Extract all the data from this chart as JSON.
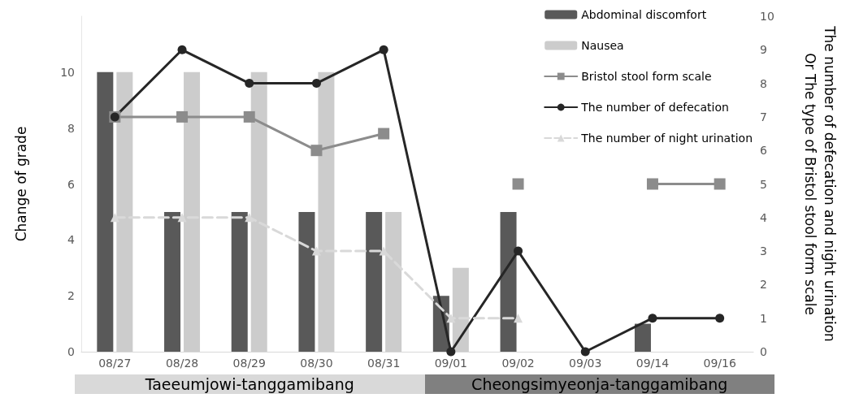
{
  "chart_data": {
    "type": "bar",
    "categories": [
      "08/27",
      "08/28",
      "08/29",
      "08/30",
      "08/31",
      "09/01",
      "09/02",
      "09/03",
      "09/14",
      "09/16"
    ],
    "series": [
      {
        "name": "Abdominal discomfort",
        "color": "#595959",
        "values": [
          10,
          5,
          5,
          5,
          5,
          2,
          5,
          null,
          1,
          null
        ]
      },
      {
        "name": "Nausea",
        "color": "#cccccc",
        "values": [
          10,
          10,
          10,
          10,
          5,
          3,
          null,
          null,
          null,
          null
        ]
      },
      {
        "name": "Bristol stool form scale",
        "type": "line",
        "axis": "y2",
        "color": "#8c8c8c",
        "marker": "square",
        "line_style": "solid",
        "values": [
          7,
          7,
          7,
          6,
          6.5,
          null,
          5,
          null,
          5,
          5
        ]
      },
      {
        "name": "The number of defecation",
        "type": "line",
        "axis": "y2",
        "color": "#262626",
        "marker": "circle",
        "line_style": "solid",
        "values": [
          7,
          9,
          8,
          8,
          9,
          0,
          3,
          0,
          1,
          1
        ]
      },
      {
        "name": "The number of night urination",
        "type": "line",
        "axis": "y2",
        "color": "#d9d9d9",
        "marker": "triangle",
        "line_style": "dashed",
        "values": [
          4,
          4,
          4,
          3,
          3,
          1,
          1,
          null,
          null,
          null
        ]
      }
    ],
    "ylabel": "Change of grade",
    "y2label": "The number of defecation and night urination\nOr The type of Bristol stool form scale",
    "ylim": [
      0,
      12
    ],
    "yticks": [
      0,
      2,
      4,
      6,
      8,
      10
    ],
    "y2lim": [
      0,
      10
    ],
    "y2ticks": [
      0,
      1,
      2,
      3,
      4,
      5,
      6,
      7,
      8,
      9,
      10
    ],
    "annotations": [
      "Taeeumjowi-tanggamibang",
      "Cheongsimyeonja-tanggamibang"
    ],
    "legend": "top right",
    "grid": false
  }
}
